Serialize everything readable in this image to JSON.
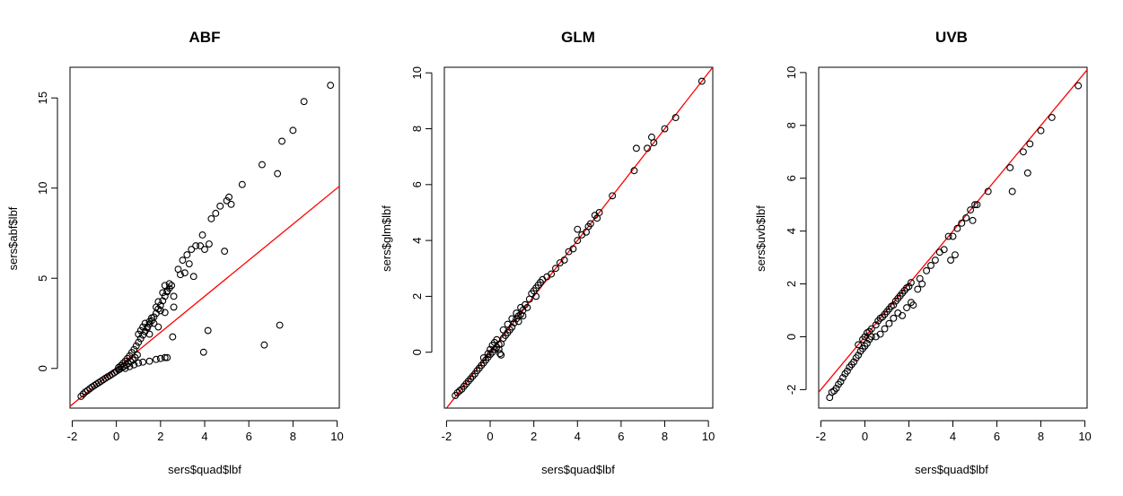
{
  "chart_data": [
    {
      "type": "scatter",
      "title": "ABF",
      "xlabel": "sers$quad$lbf",
      "ylabel": "sers$abf$lbf",
      "xlim": [
        -2.1,
        10.1
      ],
      "ylim": [
        -2.2,
        16.7
      ],
      "xticks": [
        -2,
        0,
        2,
        4,
        6,
        8,
        10
      ],
      "yticks": [
        0,
        5,
        10,
        15
      ],
      "grid": false,
      "marker": "open-circle",
      "point_color": "#000000",
      "reference_line": {
        "type": "identity",
        "slope": 1,
        "intercept": 0,
        "color": "#ff0000"
      },
      "points": [
        [
          -1.6,
          -1.55
        ],
        [
          -1.5,
          -1.42
        ],
        [
          -1.4,
          -1.3
        ],
        [
          -1.3,
          -1.22
        ],
        [
          -1.2,
          -1.12
        ],
        [
          -1.1,
          -1.03
        ],
        [
          -1.0,
          -0.95
        ],
        [
          -0.9,
          -0.87
        ],
        [
          -0.8,
          -0.79
        ],
        [
          -0.7,
          -0.71
        ],
        [
          -0.6,
          -0.63
        ],
        [
          -0.5,
          -0.55
        ],
        [
          -0.4,
          -0.47
        ],
        [
          -0.3,
          -0.4
        ],
        [
          -0.2,
          -0.32
        ],
        [
          -0.1,
          -0.24
        ],
        [
          0.0,
          -0.16
        ],
        [
          0.1,
          -0.08
        ],
        [
          0.15,
          -0.04
        ],
        [
          0.25,
          0.04
        ],
        [
          0.35,
          0.12
        ],
        [
          0.45,
          0.2
        ],
        [
          0.55,
          0.28
        ],
        [
          0.65,
          0.37
        ],
        [
          0.75,
          0.47
        ],
        [
          0.85,
          0.6
        ],
        [
          0.95,
          0.75
        ],
        [
          0.1,
          0.05
        ],
        [
          0.2,
          0.15
        ],
        [
          0.3,
          0.28
        ],
        [
          0.4,
          0.4
        ],
        [
          0.5,
          0.55
        ],
        [
          0.6,
          0.7
        ],
        [
          0.7,
          0.88
        ],
        [
          0.8,
          1.05
        ],
        [
          0.9,
          1.25
        ],
        [
          1.0,
          1.45
        ],
        [
          1.1,
          1.65
        ],
        [
          1.2,
          1.85
        ],
        [
          1.3,
          2.05
        ],
        [
          1.4,
          2.25
        ],
        [
          1.5,
          2.45
        ],
        [
          1.6,
          2.65
        ],
        [
          1.7,
          2.85
        ],
        [
          1.8,
          3.05
        ],
        [
          1.9,
          3.3
        ],
        [
          2.0,
          3.5
        ],
        [
          2.1,
          3.75
        ],
        [
          2.2,
          4.0
        ],
        [
          2.3,
          4.25
        ],
        [
          2.4,
          4.45
        ],
        [
          1.0,
          1.9
        ],
        [
          1.1,
          2.1
        ],
        [
          1.2,
          2.3
        ],
        [
          1.3,
          2.5
        ],
        [
          1.4,
          2.3
        ],
        [
          1.5,
          2.6
        ],
        [
          1.6,
          2.8
        ],
        [
          1.7,
          2.5
        ],
        [
          1.8,
          3.4
        ],
        [
          1.9,
          3.7
        ],
        [
          2.0,
          3.2
        ],
        [
          2.1,
          4.2
        ],
        [
          2.2,
          4.6
        ],
        [
          2.3,
          4.3
        ],
        [
          2.4,
          4.7
        ],
        [
          2.2,
          3.1
        ],
        [
          1.9,
          2.3
        ],
        [
          1.5,
          1.9
        ],
        [
          2.5,
          4.6
        ],
        [
          2.6,
          4.0
        ],
        [
          2.6,
          3.4
        ],
        [
          2.55,
          1.75
        ],
        [
          0.4,
          0.0
        ],
        [
          0.6,
          0.1
        ],
        [
          0.8,
          0.2
        ],
        [
          1.0,
          0.3
        ],
        [
          1.2,
          0.35
        ],
        [
          1.5,
          0.4
        ],
        [
          1.8,
          0.5
        ],
        [
          2.0,
          0.55
        ],
        [
          2.2,
          0.6
        ],
        [
          2.3,
          0.6
        ],
        [
          2.8,
          5.5
        ],
        [
          2.9,
          5.2
        ],
        [
          3.0,
          6.0
        ],
        [
          3.1,
          5.3
        ],
        [
          3.2,
          6.3
        ],
        [
          3.3,
          5.8
        ],
        [
          3.4,
          6.6
        ],
        [
          3.5,
          5.1
        ],
        [
          3.6,
          6.8
        ],
        [
          3.8,
          6.8
        ],
        [
          3.9,
          7.4
        ],
        [
          4.0,
          6.6
        ],
        [
          4.2,
          6.9
        ],
        [
          4.3,
          8.3
        ],
        [
          4.5,
          8.6
        ],
        [
          4.7,
          9.0
        ],
        [
          4.9,
          6.5
        ],
        [
          5.0,
          9.3
        ],
        [
          5.1,
          9.5
        ],
        [
          5.2,
          9.1
        ],
        [
          5.7,
          10.2
        ],
        [
          6.6,
          11.3
        ],
        [
          7.3,
          10.8
        ],
        [
          7.5,
          12.6
        ],
        [
          8.0,
          13.2
        ],
        [
          8.5,
          14.8
        ],
        [
          9.7,
          15.7
        ],
        [
          3.95,
          0.9
        ],
        [
          4.15,
          2.1
        ],
        [
          6.7,
          1.3
        ],
        [
          7.4,
          2.4
        ]
      ]
    },
    {
      "type": "scatter",
      "title": "GLM",
      "xlabel": "sers$quad$lbf",
      "ylabel": "sers$glm$lbf",
      "xlim": [
        -2.1,
        10.2
      ],
      "ylim": [
        -2.0,
        10.2
      ],
      "xticks": [
        -2,
        0,
        2,
        4,
        6,
        8,
        10
      ],
      "yticks": [
        0,
        2,
        4,
        6,
        8,
        10
      ],
      "grid": false,
      "marker": "open-circle",
      "point_color": "#000000",
      "reference_line": {
        "type": "identity",
        "slope": 1,
        "intercept": 0,
        "color": "#ff0000"
      },
      "points": [
        [
          -1.6,
          -1.55
        ],
        [
          -1.5,
          -1.45
        ],
        [
          -1.4,
          -1.38
        ],
        [
          -1.3,
          -1.32
        ],
        [
          -1.2,
          -1.22
        ],
        [
          -1.1,
          -1.13
        ],
        [
          -1.0,
          -1.04
        ],
        [
          -0.9,
          -0.95
        ],
        [
          -0.8,
          -0.86
        ],
        [
          -0.7,
          -0.77
        ],
        [
          -0.6,
          -0.66
        ],
        [
          -0.5,
          -0.57
        ],
        [
          -0.4,
          -0.47
        ],
        [
          -0.3,
          -0.38
        ],
        [
          -0.2,
          -0.28
        ],
        [
          -0.1,
          -0.18
        ],
        [
          0.0,
          -0.08
        ],
        [
          0.1,
          0.0
        ],
        [
          0.2,
          0.1
        ],
        [
          0.3,
          0.18
        ],
        [
          0.4,
          0.28
        ],
        [
          -0.3,
          -0.2
        ],
        [
          -0.1,
          -0.05
        ],
        [
          0.0,
          0.1
        ],
        [
          0.1,
          0.25
        ],
        [
          0.2,
          0.35
        ],
        [
          0.3,
          0.45
        ],
        [
          0.4,
          0.1
        ],
        [
          0.45,
          -0.05
        ],
        [
          0.5,
          -0.1
        ],
        [
          0.5,
          0.3
        ],
        [
          0.6,
          0.5
        ],
        [
          0.7,
          0.6
        ],
        [
          0.8,
          0.7
        ],
        [
          0.9,
          0.8
        ],
        [
          1.0,
          0.9
        ],
        [
          1.1,
          1.05
        ],
        [
          1.2,
          1.2
        ],
        [
          1.3,
          1.3
        ],
        [
          1.4,
          1.35
        ],
        [
          1.5,
          1.5
        ],
        [
          0.6,
          0.8
        ],
        [
          0.8,
          1.0
        ],
        [
          1.0,
          1.2
        ],
        [
          1.2,
          1.4
        ],
        [
          1.4,
          1.6
        ],
        [
          1.6,
          1.7
        ],
        [
          1.8,
          1.9
        ],
        [
          1.9,
          2.1
        ],
        [
          2.0,
          2.2
        ],
        [
          2.1,
          2.3
        ],
        [
          2.2,
          2.4
        ],
        [
          2.3,
          2.5
        ],
        [
          2.4,
          2.6
        ],
        [
          2.6,
          2.7
        ],
        [
          2.8,
          2.8
        ],
        [
          3.0,
          3.0
        ],
        [
          3.2,
          3.2
        ],
        [
          3.4,
          3.3
        ],
        [
          3.6,
          3.6
        ],
        [
          3.8,
          3.7
        ],
        [
          4.0,
          4.0
        ],
        [
          4.2,
          4.2
        ],
        [
          4.4,
          4.3
        ],
        [
          4.6,
          4.6
        ],
        [
          4.9,
          4.8
        ],
        [
          5.0,
          5.0
        ],
        [
          5.6,
          5.6
        ],
        [
          6.6,
          6.5
        ],
        [
          6.7,
          7.3
        ],
        [
          7.2,
          7.3
        ],
        [
          7.4,
          7.7
        ],
        [
          7.5,
          7.5
        ],
        [
          8.0,
          8.0
        ],
        [
          8.5,
          8.4
        ],
        [
          9.7,
          9.7
        ],
        [
          2.1,
          2.0
        ],
        [
          1.7,
          1.6
        ],
        [
          1.5,
          1.3
        ],
        [
          1.3,
          1.1
        ],
        [
          4.0,
          4.4
        ],
        [
          4.5,
          4.5
        ],
        [
          4.8,
          4.9
        ]
      ]
    },
    {
      "type": "scatter",
      "title": "UVB",
      "xlabel": "sers$quad$lbf",
      "ylabel": "sers$uvb$lbf",
      "xlim": [
        -2.1,
        10.1
      ],
      "ylim": [
        -2.7,
        10.2
      ],
      "xticks": [
        -2,
        0,
        2,
        4,
        6,
        8,
        10
      ],
      "yticks": [
        -2,
        0,
        2,
        4,
        6,
        8,
        10
      ],
      "grid": false,
      "marker": "open-circle",
      "point_color": "#000000",
      "reference_line": {
        "type": "identity",
        "slope": 1,
        "intercept": 0,
        "color": "#ff0000"
      },
      "points": [
        [
          -1.6,
          -2.3
        ],
        [
          -1.5,
          -2.1
        ],
        [
          -1.4,
          -2.05
        ],
        [
          -1.3,
          -1.95
        ],
        [
          -1.2,
          -1.8
        ],
        [
          -1.1,
          -1.7
        ],
        [
          -1.0,
          -1.55
        ],
        [
          -0.9,
          -1.4
        ],
        [
          -0.8,
          -1.3
        ],
        [
          -0.7,
          -1.15
        ],
        [
          -0.6,
          -1.05
        ],
        [
          -0.5,
          -0.95
        ],
        [
          -0.4,
          -0.8
        ],
        [
          -0.3,
          -0.7
        ],
        [
          -0.2,
          -0.55
        ],
        [
          -0.1,
          -0.45
        ],
        [
          0.0,
          -0.35
        ],
        [
          0.1,
          -0.25
        ],
        [
          0.2,
          -0.1
        ],
        [
          0.3,
          0.0
        ],
        [
          -0.3,
          -0.3
        ],
        [
          -0.1,
          -0.1
        ],
        [
          0.0,
          0.0
        ],
        [
          0.1,
          0.15
        ],
        [
          0.2,
          0.2
        ],
        [
          0.3,
          0.3
        ],
        [
          0.5,
          0.45
        ],
        [
          0.6,
          0.6
        ],
        [
          0.7,
          0.7
        ],
        [
          0.8,
          0.75
        ],
        [
          0.9,
          0.85
        ],
        [
          1.0,
          0.95
        ],
        [
          1.1,
          1.05
        ],
        [
          1.2,
          1.15
        ],
        [
          1.3,
          1.2
        ],
        [
          1.4,
          1.35
        ],
        [
          1.5,
          1.45
        ],
        [
          1.6,
          1.55
        ],
        [
          1.7,
          1.65
        ],
        [
          1.8,
          1.75
        ],
        [
          1.9,
          1.85
        ],
        [
          2.0,
          1.9
        ],
        [
          2.1,
          2.05
        ],
        [
          0.5,
          0.0
        ],
        [
          0.7,
          0.1
        ],
        [
          0.9,
          0.3
        ],
        [
          1.1,
          0.5
        ],
        [
          1.3,
          0.7
        ],
        [
          1.5,
          0.9
        ],
        [
          1.7,
          0.8
        ],
        [
          1.9,
          1.1
        ],
        [
          2.1,
          1.3
        ],
        [
          2.2,
          1.2
        ],
        [
          2.4,
          1.8
        ],
        [
          2.5,
          2.2
        ],
        [
          2.6,
          2.0
        ],
        [
          2.8,
          2.5
        ],
        [
          3.0,
          2.7
        ],
        [
          3.2,
          2.9
        ],
        [
          3.4,
          3.2
        ],
        [
          3.6,
          3.3
        ],
        [
          3.8,
          3.8
        ],
        [
          3.9,
          2.9
        ],
        [
          4.0,
          3.8
        ],
        [
          4.1,
          3.1
        ],
        [
          4.2,
          4.1
        ],
        [
          4.4,
          4.3
        ],
        [
          4.6,
          4.5
        ],
        [
          4.8,
          4.8
        ],
        [
          4.9,
          4.4
        ],
        [
          5.0,
          5.0
        ],
        [
          5.1,
          5.0
        ],
        [
          5.6,
          5.5
        ],
        [
          6.6,
          6.4
        ],
        [
          6.7,
          5.5
        ],
        [
          7.2,
          7.0
        ],
        [
          7.4,
          6.2
        ],
        [
          7.5,
          7.3
        ],
        [
          8.0,
          7.8
        ],
        [
          8.5,
          8.3
        ],
        [
          9.7,
          9.5
        ]
      ]
    }
  ]
}
